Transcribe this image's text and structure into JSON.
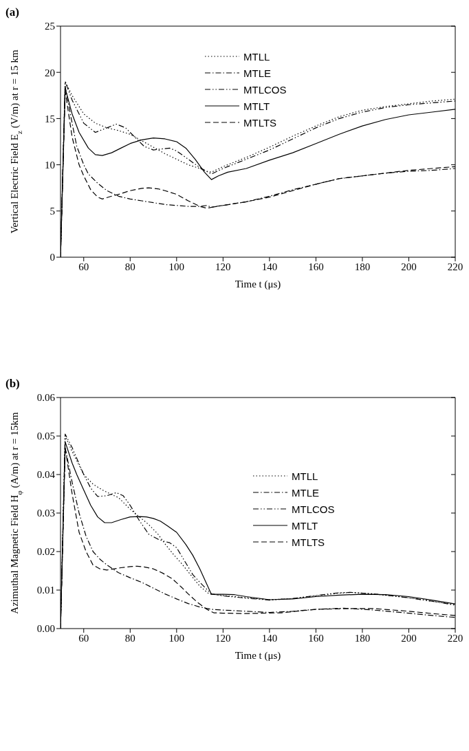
{
  "chart_data": [
    {
      "type": "line",
      "title": "(a)",
      "xlabel": "Time t (μs)",
      "ylabel": "Vertical Electric Field E$_{z}$ (V/m) at r = 15 km",
      "xlim": [
        50,
        220
      ],
      "xticks": [
        60,
        80,
        100,
        120,
        140,
        160,
        180,
        200,
        220
      ],
      "ylim": [
        0,
        25
      ],
      "yticks": [
        0,
        5,
        10,
        15,
        20,
        25
      ],
      "grid": false,
      "legend": "top",
      "marker": "none",
      "series": [
        {
          "name": "MTLL",
          "color": "#000000",
          "line_style": "dotted",
          "x": [
            50,
            52,
            55,
            60,
            65,
            70,
            75,
            80,
            85,
            90,
            95,
            100,
            105,
            110,
            113,
            115,
            120,
            130,
            140,
            150,
            160,
            170,
            180,
            190,
            200,
            210,
            220
          ],
          "values": [
            0,
            19,
            17.5,
            15.5,
            14.5,
            14,
            13.7,
            13.3,
            12.6,
            11.9,
            11.2,
            10.6,
            10,
            9.6,
            9.3,
            9.2,
            9.8,
            10.8,
            11.9,
            13.1,
            14.2,
            15.2,
            15.9,
            16.3,
            16.6,
            16.9,
            17.1
          ]
        },
        {
          "name": "MTLE",
          "color": "#000000",
          "line_style": "dashdot",
          "x": [
            50,
            52,
            55,
            57,
            60,
            62,
            66,
            70,
            75,
            80,
            85,
            90,
            95,
            100,
            105,
            110,
            113,
            115,
            120,
            130,
            140,
            150,
            160,
            170,
            180,
            190,
            200,
            210,
            220
          ],
          "values": [
            0,
            18.5,
            14.5,
            12,
            10,
            9,
            8,
            7.2,
            6.6,
            6.3,
            6.1,
            5.9,
            5.7,
            5.6,
            5.5,
            5.5,
            5.6,
            5.4,
            5.6,
            6,
            6.6,
            7.3,
            7.9,
            8.5,
            8.8,
            9.1,
            9.3,
            9.4,
            9.6
          ]
        },
        {
          "name": "MTLCOS",
          "color": "#000000",
          "line_style": "dashdotdot",
          "x": [
            50,
            52,
            55,
            60,
            65,
            70,
            74,
            78,
            82,
            86,
            90,
            93,
            97,
            100,
            105,
            110,
            115,
            120,
            130,
            140,
            150,
            160,
            170,
            180,
            190,
            200,
            210,
            220
          ],
          "values": [
            0,
            19,
            17,
            14.5,
            13.5,
            14,
            14.4,
            14,
            13,
            12,
            11.6,
            11.7,
            11.8,
            11.5,
            10.6,
            9.7,
            9,
            9.6,
            10.6,
            11.6,
            12.8,
            14,
            15,
            15.7,
            16.2,
            16.5,
            16.7,
            16.9
          ]
        },
        {
          "name": "MTLT",
          "color": "#000000",
          "line_style": "solid",
          "x": [
            50,
            52,
            55,
            58,
            62,
            65,
            68,
            72,
            76,
            80,
            85,
            90,
            95,
            100,
            104,
            108,
            112,
            115,
            118,
            122,
            130,
            140,
            150,
            160,
            170,
            180,
            190,
            200,
            210,
            220
          ],
          "values": [
            0,
            18.3,
            15.5,
            13.5,
            11.8,
            11.1,
            11,
            11.3,
            11.8,
            12.3,
            12.7,
            12.9,
            12.8,
            12.5,
            11.8,
            10.6,
            9.2,
            8.4,
            8.8,
            9.2,
            9.6,
            10.5,
            11.3,
            12.3,
            13.3,
            14.2,
            14.9,
            15.4,
            15.7,
            16
          ]
        },
        {
          "name": "MTLTS",
          "color": "#000000",
          "line_style": "dashed",
          "x": [
            50,
            52,
            55,
            58,
            60,
            63,
            66,
            68,
            72,
            75,
            80,
            85,
            88,
            92,
            95,
            100,
            105,
            110,
            113,
            117,
            120,
            130,
            140,
            150,
            160,
            170,
            180,
            190,
            200,
            210,
            220
          ],
          "values": [
            0,
            18,
            13,
            10,
            8.8,
            7.3,
            6.5,
            6.3,
            6.6,
            6.8,
            7.2,
            7.45,
            7.5,
            7.4,
            7.2,
            6.8,
            6.1,
            5.5,
            5.3,
            5.5,
            5.6,
            6,
            6.5,
            7.2,
            7.9,
            8.5,
            8.8,
            9.1,
            9.4,
            9.6,
            9.8
          ]
        }
      ]
    },
    {
      "type": "line",
      "title": "(b)",
      "xlabel": "Time t (μs)",
      "ylabel": "Azimuthal Magnetic Field H$_{φ}$ (A/m) at r = 15km",
      "xlim": [
        50,
        220
      ],
      "xticks": [
        60,
        80,
        100,
        120,
        140,
        160,
        180,
        200,
        220
      ],
      "ylim": [
        0,
        0.06
      ],
      "yticks": [
        {
          "value": 0,
          "label": "0.00"
        },
        {
          "value": 0.01,
          "label": "0.01"
        },
        {
          "value": 0.02,
          "label": "0.02"
        },
        {
          "value": 0.03,
          "label": "0.03"
        },
        {
          "value": 0.04,
          "label": "0.04"
        },
        {
          "value": 0.05,
          "label": "0.05"
        },
        {
          "value": 0.06,
          "label": "0.06"
        }
      ],
      "grid": false,
      "legend": "right",
      "marker": "none",
      "series": [
        {
          "name": "MTLL",
          "color": "#000000",
          "line_style": "dotted",
          "x": [
            50,
            52,
            55,
            60,
            64,
            68,
            72,
            75,
            80,
            84,
            88,
            92,
            95,
            99,
            102,
            106,
            110,
            114,
            120,
            130,
            140,
            150,
            160,
            170,
            175,
            185,
            200,
            210,
            220
          ],
          "values": [
            0,
            0.05,
            0.046,
            0.04,
            0.0375,
            0.036,
            0.0348,
            0.034,
            0.031,
            0.029,
            0.027,
            0.0245,
            0.022,
            0.019,
            0.017,
            0.014,
            0.011,
            0.009,
            0.0086,
            0.008,
            0.0075,
            0.0078,
            0.0085,
            0.0092,
            0.0094,
            0.009,
            0.008,
            0.0071,
            0.0062
          ]
        },
        {
          "name": "MTLE",
          "color": "#000000",
          "line_style": "dashdot",
          "x": [
            50,
            52,
            55,
            58,
            61,
            64,
            67,
            70,
            75,
            80,
            85,
            90,
            95,
            100,
            105,
            110,
            115,
            120,
            130,
            140,
            150,
            160,
            172,
            185,
            200,
            210,
            220
          ],
          "values": [
            0,
            0.047,
            0.038,
            0.03,
            0.024,
            0.02,
            0.018,
            0.0165,
            0.0145,
            0.0132,
            0.012,
            0.0105,
            0.009,
            0.0077,
            0.0065,
            0.0056,
            0.005,
            0.0048,
            0.0045,
            0.0042,
            0.0045,
            0.005,
            0.0053,
            0.0048,
            0.004,
            0.0034,
            0.0029
          ]
        },
        {
          "name": "MTLCOS",
          "color": "#000000",
          "line_style": "dashdotdot",
          "x": [
            50,
            52,
            55,
            60,
            63,
            66,
            70,
            74,
            77,
            80,
            84,
            88,
            92,
            95,
            97,
            100,
            103,
            107,
            110,
            115,
            120,
            130,
            140,
            150,
            160,
            170,
            175,
            185,
            200,
            210,
            220
          ],
          "values": [
            0,
            0.0505,
            0.047,
            0.04,
            0.0365,
            0.0343,
            0.0345,
            0.0353,
            0.0345,
            0.032,
            0.028,
            0.0245,
            0.0232,
            0.0226,
            0.0223,
            0.021,
            0.018,
            0.014,
            0.012,
            0.009,
            0.0085,
            0.0079,
            0.0074,
            0.0078,
            0.0086,
            0.0093,
            0.0094,
            0.009,
            0.008,
            0.0071,
            0.0061
          ]
        },
        {
          "name": "MTLT",
          "color": "#000000",
          "line_style": "solid",
          "x": [
            50,
            52,
            55,
            57,
            60,
            63,
            66,
            69,
            72,
            76,
            80,
            84,
            87,
            90,
            93,
            96,
            100,
            104,
            107,
            110,
            115,
            120,
            125,
            130,
            140,
            150,
            160,
            170,
            180,
            190,
            200,
            210,
            220
          ],
          "values": [
            0,
            0.0485,
            0.043,
            0.04,
            0.036,
            0.032,
            0.029,
            0.0275,
            0.0275,
            0.0283,
            0.029,
            0.0291,
            0.029,
            0.0286,
            0.0279,
            0.0267,
            0.025,
            0.0218,
            0.019,
            0.0155,
            0.0089,
            0.0089,
            0.0088,
            0.0083,
            0.0075,
            0.0077,
            0.0083,
            0.0087,
            0.0089,
            0.0088,
            0.0083,
            0.0074,
            0.0064
          ]
        },
        {
          "name": "MTLTS",
          "color": "#000000",
          "line_style": "dashed",
          "x": [
            50,
            52,
            55,
            58,
            61,
            64,
            67,
            70,
            73,
            76,
            80,
            83,
            86,
            90,
            94,
            98,
            102,
            105,
            109,
            113,
            116,
            120,
            130,
            145,
            160,
            175,
            185,
            200,
            210,
            220
          ],
          "values": [
            0,
            0.047,
            0.035,
            0.025,
            0.02,
            0.0165,
            0.0155,
            0.0152,
            0.0155,
            0.0158,
            0.0161,
            0.0162,
            0.016,
            0.0155,
            0.0144,
            0.013,
            0.0108,
            0.009,
            0.0068,
            0.005,
            0.0041,
            0.004,
            0.0039,
            0.0041,
            0.005,
            0.0052,
            0.0052,
            0.0045,
            0.0039,
            0.0034
          ]
        }
      ]
    }
  ]
}
